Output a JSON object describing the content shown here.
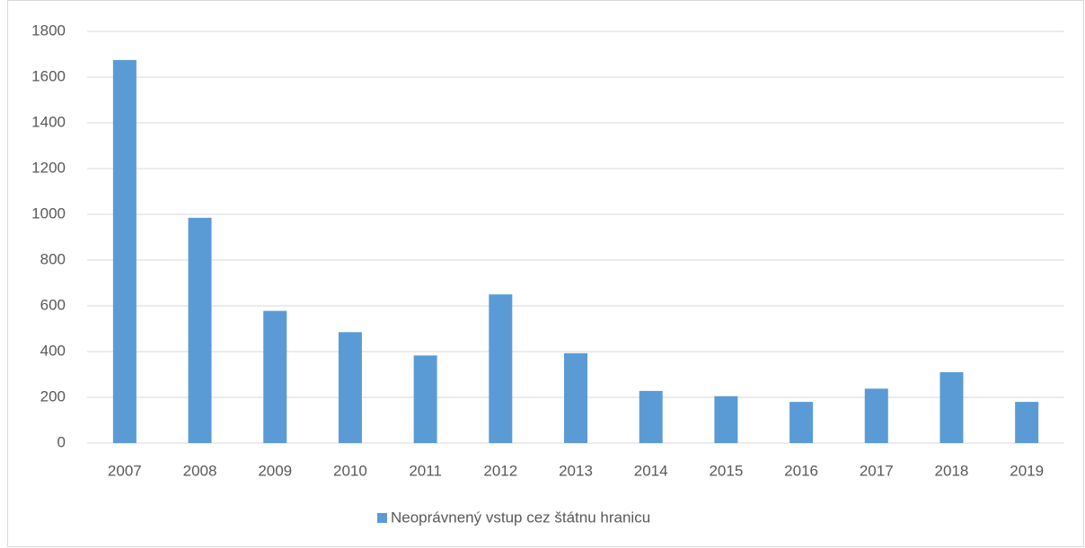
{
  "chart_data": {
    "type": "bar",
    "categories": [
      "2007",
      "2008",
      "2009",
      "2010",
      "2011",
      "2012",
      "2013",
      "2014",
      "2015",
      "2016",
      "2017",
      "2018",
      "2019"
    ],
    "series": [
      {
        "name": "Neoprávnený vstup cez štátnu hranicu",
        "color": "#5b9bd5",
        "values": [
          1675,
          985,
          578,
          485,
          383,
          650,
          393,
          228,
          205,
          180,
          238,
          310,
          180
        ]
      }
    ],
    "ylim": [
      0,
      1800
    ],
    "yticks": [
      0,
      200,
      400,
      600,
      800,
      1000,
      1200,
      1400,
      1600,
      1800
    ],
    "grid": true,
    "legend": "bottom"
  }
}
